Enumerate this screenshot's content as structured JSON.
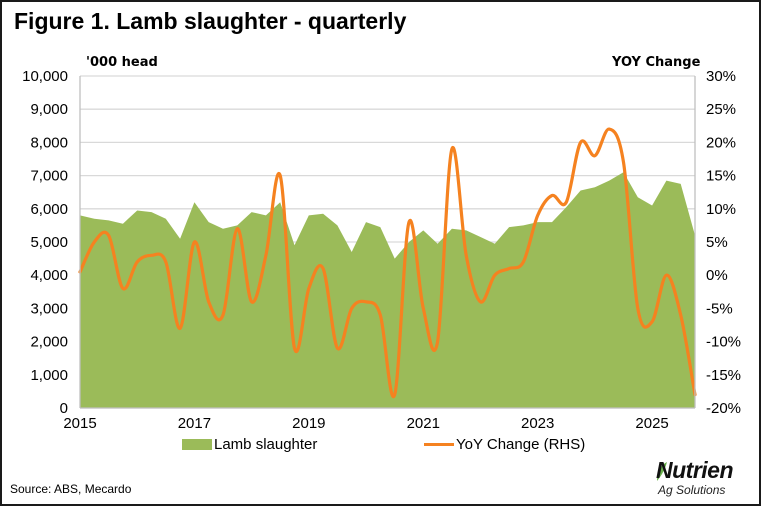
{
  "figure": {
    "title": "Figure 1. Lamb slaughter - quarterly",
    "left_unit": "'000 head",
    "right_unit": "YOY Change",
    "source": "Source: ABS, Mecardo",
    "logo": {
      "name": "Nutrien",
      "tagline": "Ag Solutions",
      "accent_color": "#6ab04c"
    }
  },
  "chart_data": {
    "type": "area",
    "title": "Figure 1. Lamb slaughter - quarterly",
    "xlabel": "",
    "ylabel": "'000 head",
    "y2label": "YOY Change",
    "x_tick_labels": [
      "2015",
      "2017",
      "2019",
      "2021",
      "2023",
      "2025"
    ],
    "x_tick_years": [
      2015,
      2017,
      2019,
      2021,
      2023,
      2025
    ],
    "x_start_year": 2015,
    "periods_per_year": 4,
    "ylim": [
      0,
      10000
    ],
    "y_ticks": [
      0,
      1000,
      2000,
      3000,
      4000,
      5000,
      6000,
      7000,
      8000,
      9000,
      10000
    ],
    "y_tick_labels": [
      "0",
      "1,000",
      "2,000",
      "3,000",
      "4,000",
      "5,000",
      "6,000",
      "7,000",
      "8,000",
      "9,000",
      "10,000"
    ],
    "y2lim": [
      -20,
      30
    ],
    "y2_ticks": [
      -20,
      -15,
      -10,
      -5,
      0,
      5,
      10,
      15,
      20,
      25,
      30
    ],
    "y2_tick_labels": [
      "-20%",
      "-15%",
      "-10%",
      "-5%",
      "0%",
      "5%",
      "10%",
      "15%",
      "20%",
      "25%",
      "30%"
    ],
    "grid": true,
    "legend_position": "bottom",
    "series": [
      {
        "name": "Lamb slaughter",
        "type": "area",
        "axis": "left",
        "color": "#9bbb59",
        "values": [
          5800,
          5700,
          5650,
          5550,
          5950,
          5900,
          5700,
          5100,
          6200,
          5600,
          5400,
          5500,
          5900,
          5800,
          6200,
          4900,
          5800,
          5850,
          5500,
          4700,
          5600,
          5450,
          4500,
          5000,
          5350,
          4950,
          5400,
          5350,
          5150,
          4950,
          5450,
          5500,
          5600,
          5600,
          6050,
          6550,
          6650,
          6850,
          7100,
          6350,
          6100,
          6850,
          6750,
          5200
        ]
      },
      {
        "name": "YoY Change (RHS)",
        "type": "line",
        "axis": "right",
        "color": "#f58220",
        "values": [
          0.5,
          5,
          6,
          -2,
          2,
          3,
          2,
          -8,
          5,
          -4,
          -6,
          7,
          -4,
          3,
          15,
          -11,
          -2,
          1,
          -11,
          -5,
          -4,
          -6,
          -18,
          8,
          -5,
          -10,
          19,
          3,
          -4,
          0,
          1,
          2,
          9,
          12,
          11,
          20,
          18,
          22,
          17,
          -5,
          -7,
          0,
          -6,
          -18
        ]
      }
    ]
  }
}
